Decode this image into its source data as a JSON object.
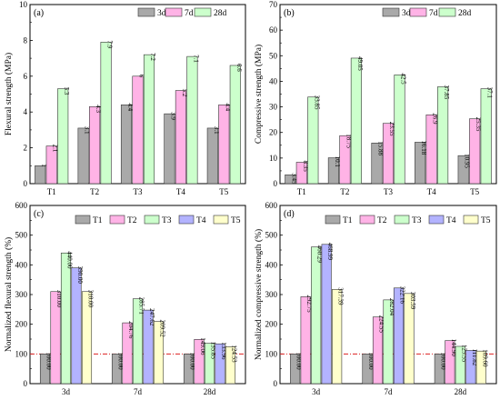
{
  "colors": {
    "3d": "#a9a9a9",
    "7d": "#ffb3e6",
    "28d": "#ccffcc",
    "T1": "#a9a9a9",
    "T2": "#ffb3e6",
    "T3": "#ccffcc",
    "T4": "#b3b3ff",
    "T5": "#ffffcc",
    "refline": "#dd2222"
  },
  "chart_data": [
    {
      "panel": "(a)",
      "type": "bar",
      "ylabel": "Flexural strength (MPa)",
      "ylim": [
        0,
        10
      ],
      "yticks": [
        0,
        2,
        4,
        6,
        8,
        10
      ],
      "categories": [
        "T1",
        "T2",
        "T3",
        "T4",
        "T5"
      ],
      "legend_position": "top-right",
      "series": [
        {
          "name": "3d",
          "values": [
            1,
            3.1,
            4.4,
            3.9,
            3.1
          ],
          "labels": [
            "1",
            "3.1",
            "4.4",
            "3.9",
            "3.1"
          ]
        },
        {
          "name": "7d",
          "values": [
            2.1,
            4.3,
            6,
            5.2,
            4.4
          ],
          "labels": [
            "2.1",
            "4.3",
            "6",
            "5.2",
            "4.4"
          ]
        },
        {
          "name": "28d",
          "values": [
            5.3,
            7.9,
            7.2,
            7.1,
            6.6
          ],
          "labels": [
            "5.3",
            "7.9",
            "7.2",
            "7.1",
            "6.6"
          ]
        }
      ]
    },
    {
      "panel": "(b)",
      "type": "bar",
      "ylabel": "Compressive strength (MPa)",
      "ylim": [
        0,
        70
      ],
      "yticks": [
        0,
        10,
        20,
        30,
        40,
        50,
        60,
        70
      ],
      "categories": [
        "T1",
        "T2",
        "T3",
        "T4",
        "T5"
      ],
      "legend_position": "top-right",
      "series": [
        {
          "name": "3d",
          "values": [
            3.45,
            10.1,
            15.88,
            16.18,
            10.95
          ],
          "labels": [
            "3.45",
            "10.1",
            "15.88",
            "16.18",
            "10.95"
          ]
        },
        {
          "name": "7d",
          "values": [
            8.35,
            18.75,
            23.55,
            26.9,
            25.35
          ],
          "labels": [
            "8.35",
            "18.75",
            "23.55",
            "26.9",
            "25.35"
          ]
        },
        {
          "name": "28d",
          "values": [
            33.85,
            49.05,
            42.5,
            37.85,
            37.1
          ],
          "labels": [
            "33.85",
            "49.05",
            "42.5",
            "37.85",
            "37.1"
          ]
        }
      ]
    },
    {
      "panel": "(c)",
      "type": "bar",
      "ylabel": "Normalized flexural strength (%)",
      "ylim": [
        0,
        600
      ],
      "yticks": [
        0,
        100,
        200,
        300,
        400,
        500,
        600
      ],
      "reference_line": 100,
      "categories": [
        "3d",
        "7d",
        "28d"
      ],
      "legend_position": "top",
      "series": [
        {
          "name": "T1",
          "values": [
            100,
            100,
            100
          ],
          "labels": [
            "100.00",
            "100.00",
            "100.00"
          ]
        },
        {
          "name": "T2",
          "values": [
            310,
            204.76,
            149.06
          ],
          "labels": [
            "310.00",
            "204.76",
            "149.06"
          ]
        },
        {
          "name": "T3",
          "values": [
            440,
            285.71,
            135.85
          ],
          "labels": [
            "440.00",
            "285.71",
            "135.85"
          ]
        },
        {
          "name": "T4",
          "values": [
            390,
            247.62,
            133.96
          ],
          "labels": [
            "390.00",
            "247.62",
            "133.96"
          ]
        },
        {
          "name": "T5",
          "values": [
            310,
            209.52,
            124.53
          ],
          "labels": [
            "310.00",
            "209.52",
            "124.53"
          ]
        }
      ]
    },
    {
      "panel": "(d)",
      "type": "bar",
      "ylabel": "Normalized compressive strength (%)",
      "ylim": [
        0,
        600
      ],
      "yticks": [
        0,
        100,
        200,
        300,
        400,
        500,
        600
      ],
      "reference_line": 100,
      "categories": [
        "3d",
        "7d",
        "28d"
      ],
      "legend_position": "top",
      "series": [
        {
          "name": "T1",
          "values": [
            100,
            100,
            100
          ],
          "labels": [
            "100.00",
            "100.00",
            "100.00"
          ]
        },
        {
          "name": "T2",
          "values": [
            292.75,
            224.55,
            144.9
          ],
          "labels": [
            "292.75",
            "224.55",
            "144.90"
          ]
        },
        {
          "name": "T3",
          "values": [
            460.29,
            282.04,
            125.55
          ],
          "labels": [
            "460.29",
            "282.04",
            "125.55"
          ]
        },
        {
          "name": "T4",
          "values": [
            468.99,
            322.16,
            111.82
          ],
          "labels": [
            "468.99",
            "322.16",
            "111.82"
          ]
        },
        {
          "name": "T5",
          "values": [
            317.39,
            303.59,
            109.6
          ],
          "labels": [
            "317.39",
            "303.59",
            "109.60"
          ]
        }
      ]
    }
  ]
}
